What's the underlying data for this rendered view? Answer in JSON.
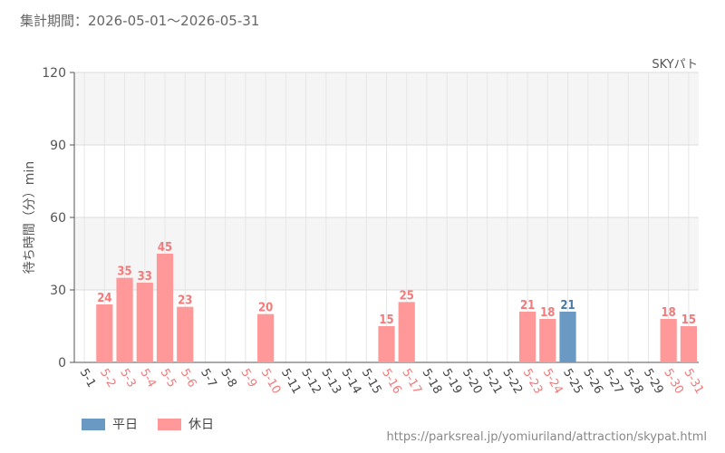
{
  "header": {
    "period_label": "集計期間：2026-05-01～2026-05-31",
    "attraction_name": "SKYパト"
  },
  "footer": {
    "source_url": "https://parksreal.jp/yomiuriland/attraction/skypat.html"
  },
  "colors": {
    "weekday": "#6a9ac4",
    "holiday": "#ff9999",
    "weekday_label": "#444444",
    "holiday_label": "#f27a7a",
    "weekday_value": "#4a7aa8",
    "holiday_value": "#f27a7a",
    "band": "#f5f5f5",
    "grid": "#e6e6e6"
  },
  "chart_data": {
    "type": "bar",
    "ylabel": "待ち時間（分）min",
    "ylim": [
      0,
      120
    ],
    "yticks": [
      0,
      30,
      60,
      90,
      120
    ],
    "categories": [
      "5-1",
      "5-2",
      "5-3",
      "5-4",
      "5-5",
      "5-6",
      "5-7",
      "5-8",
      "5-9",
      "5-10",
      "5-11",
      "5-12",
      "5-13",
      "5-14",
      "5-15",
      "5-16",
      "5-17",
      "5-18",
      "5-19",
      "5-20",
      "5-21",
      "5-22",
      "5-23",
      "5-24",
      "5-25",
      "5-26",
      "5-27",
      "5-28",
      "5-29",
      "5-30",
      "5-31"
    ],
    "day_types": [
      "weekday",
      "holiday",
      "holiday",
      "holiday",
      "holiday",
      "holiday",
      "weekday",
      "weekday",
      "holiday",
      "holiday",
      "weekday",
      "weekday",
      "weekday",
      "weekday",
      "weekday",
      "holiday",
      "holiday",
      "weekday",
      "weekday",
      "weekday",
      "weekday",
      "weekday",
      "holiday",
      "holiday",
      "weekday",
      "weekday",
      "weekday",
      "weekday",
      "weekday",
      "holiday",
      "holiday"
    ],
    "values": [
      null,
      24,
      35,
      33,
      45,
      23,
      null,
      null,
      null,
      20,
      null,
      null,
      null,
      null,
      null,
      15,
      25,
      null,
      null,
      null,
      null,
      null,
      21,
      18,
      21,
      null,
      null,
      null,
      null,
      18,
      15
    ],
    "legend": [
      {
        "key": "weekday",
        "label": "平日"
      },
      {
        "key": "holiday",
        "label": "休日"
      }
    ]
  }
}
